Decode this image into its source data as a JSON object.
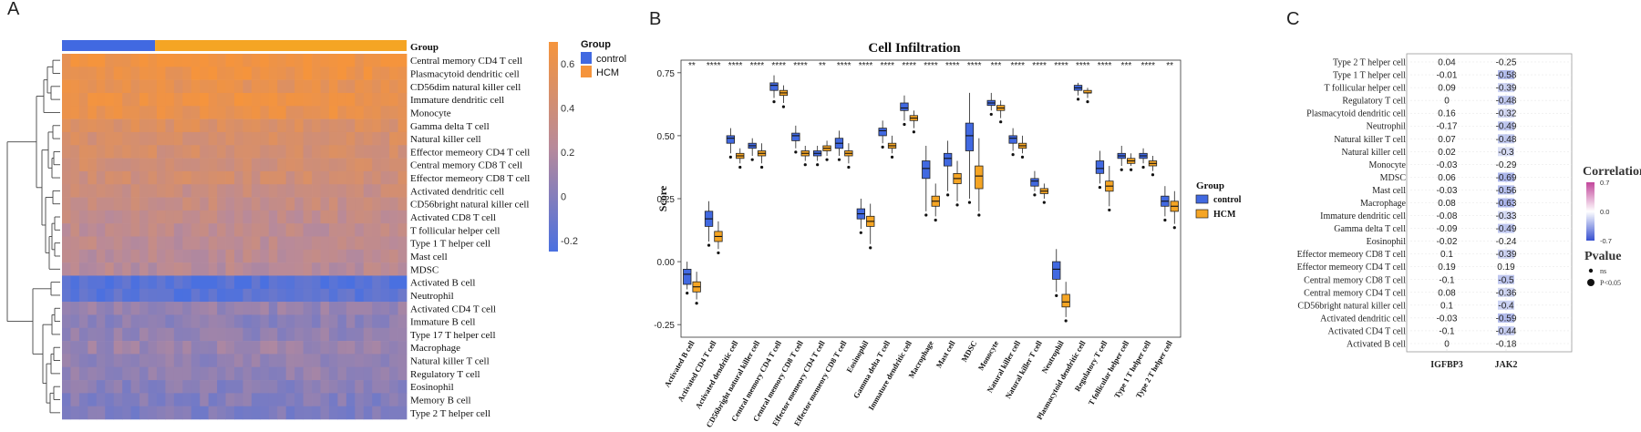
{
  "panels": {
    "a": "A",
    "b": "B",
    "c": "C"
  },
  "colors": {
    "control": "#4169e1",
    "hcm": "#f5a524",
    "heat_low": "#4a70e0",
    "heat_high": "#f5943c",
    "corr_pos": "#c2469b",
    "corr_neg": "#3750d0"
  },
  "chart_data": [
    {
      "type": "heatmap",
      "panel": "A",
      "annotation_title": "Group",
      "legend_title": "Group",
      "legend_items": [
        "control",
        "HCM"
      ],
      "group_split": {
        "control_fraction": 0.27
      },
      "colorbar": {
        "ticks": [
          0.6,
          0.4,
          0.2,
          0,
          -0.2
        ],
        "range": [
          -0.25,
          0.7
        ]
      },
      "rows": [
        "Central memory CD4 T cell",
        "Plasmacytoid dendritic cell",
        "CD56dim natural killer cell",
        "Immature dendritic cell",
        "Monocyte",
        "Gamma delta T cell",
        "Natural killer cell",
        "Effector memeory CD4 T cell",
        "Central memory CD8 T cell",
        "Effector memeory CD8 T cell",
        "Activated dendritic cell",
        "CD56bright natural killer cell",
        "Activated CD8 T cell",
        "T follicular helper cell",
        "Type 1 T helper cell",
        "Mast cell",
        "MDSC",
        "Activated B cell",
        "Neutrophil",
        "Activated CD4 T cell",
        "Immature  B cell",
        "Type 17 T helper cell",
        "Macrophage",
        "Natural killer T cell",
        "Regulatory T cell",
        "Eosinophil",
        "Memory B cell",
        "Type 2 T helper cell"
      ],
      "row_values": [
        0.66,
        0.64,
        0.58,
        0.62,
        0.6,
        0.5,
        0.46,
        0.44,
        0.42,
        0.41,
        0.36,
        0.34,
        0.3,
        0.28,
        0.27,
        0.26,
        0.24,
        -0.2,
        -0.18,
        0.08,
        0.04,
        0.06,
        0.1,
        0.05,
        0.07,
        0.02,
        0.0,
        -0.02
      ]
    },
    {
      "type": "box",
      "panel": "B",
      "title": "Cell Infiltration",
      "ylabel": "Score",
      "ylim": [
        -0.3,
        0.8
      ],
      "yticks": [
        0.75,
        0.5,
        0.25,
        0.0,
        -0.25
      ],
      "ytick_labels": [
        "0.75",
        "0.50",
        "0.25",
        "0.00",
        "-0.25"
      ],
      "legend_title": "Group",
      "legend_items": [
        "control",
        "HCM"
      ],
      "categories": [
        "Activated B cell",
        "Activated CD4 T cell",
        "Activated dendritic cell",
        "CD56bright natural killer cell",
        "Central memory CD4 T cell",
        "Central memory CD8 T cell",
        "Effector memeory CD4 T cell",
        "Effector memeory CD8 T cell",
        "Eosinophil",
        "Gamma delta T cell",
        "Immature dendritic cell",
        "Macrophage",
        "Mast cell",
        "MDSC",
        "Monocyte",
        "Natural killer cell",
        "Natural killer T cell",
        "Neutrophil",
        "Plasmacytoid dendritic cell",
        "Regulatory T cell",
        "T follicular helper cell",
        "Type 1 T helper cell",
        "Type 2 T helper cell"
      ],
      "significance": [
        "**",
        "****",
        "****",
        "****",
        "****",
        "****",
        "**",
        "****",
        "****",
        "****",
        "****",
        "****",
        "****",
        "****",
        "***",
        "****",
        "****",
        "****",
        "****",
        "****",
        "***",
        "****",
        "**"
      ],
      "series": [
        {
          "name": "control",
          "stats": [
            [
              -0.11,
              -0.09,
              -0.05,
              -0.03,
              0.0
            ],
            [
              0.08,
              0.14,
              0.17,
              0.2,
              0.24
            ],
            [
              0.43,
              0.47,
              0.49,
              0.5,
              0.53
            ],
            [
              0.42,
              0.45,
              0.46,
              0.47,
              0.49
            ],
            [
              0.65,
              0.68,
              0.7,
              0.71,
              0.74
            ],
            [
              0.45,
              0.48,
              0.5,
              0.51,
              0.54
            ],
            [
              0.4,
              0.42,
              0.43,
              0.44,
              0.46
            ],
            [
              0.42,
              0.45,
              0.47,
              0.49,
              0.52
            ],
            [
              0.13,
              0.17,
              0.19,
              0.21,
              0.25
            ],
            [
              0.47,
              0.5,
              0.52,
              0.53,
              0.56
            ],
            [
              0.56,
              0.6,
              0.61,
              0.63,
              0.66
            ],
            [
              0.2,
              0.33,
              0.37,
              0.4,
              0.46
            ],
            [
              0.28,
              0.38,
              0.41,
              0.43,
              0.48
            ],
            [
              0.25,
              0.44,
              0.5,
              0.55,
              0.67
            ],
            [
              0.6,
              0.62,
              0.63,
              0.64,
              0.67
            ],
            [
              0.44,
              0.47,
              0.49,
              0.5,
              0.53
            ],
            [
              0.28,
              0.3,
              0.32,
              0.33,
              0.36
            ],
            [
              -0.12,
              -0.07,
              -0.03,
              0.0,
              0.05
            ],
            [
              0.66,
              0.68,
              0.69,
              0.7,
              0.71
            ],
            [
              0.31,
              0.35,
              0.37,
              0.4,
              0.44
            ],
            [
              0.38,
              0.41,
              0.42,
              0.43,
              0.46
            ],
            [
              0.39,
              0.41,
              0.42,
              0.43,
              0.45
            ],
            [
              0.18,
              0.22,
              0.24,
              0.26,
              0.3
            ]
          ]
        },
        {
          "name": "HCM",
          "stats": [
            [
              -0.15,
              -0.12,
              -0.1,
              -0.08,
              -0.04
            ],
            [
              0.05,
              0.08,
              0.1,
              0.12,
              0.16
            ],
            [
              0.39,
              0.41,
              0.42,
              0.43,
              0.45
            ],
            [
              0.39,
              0.42,
              0.43,
              0.44,
              0.47
            ],
            [
              0.63,
              0.66,
              0.67,
              0.68,
              0.7
            ],
            [
              0.4,
              0.42,
              0.43,
              0.44,
              0.46
            ],
            [
              0.42,
              0.44,
              0.45,
              0.46,
              0.48
            ],
            [
              0.39,
              0.42,
              0.43,
              0.44,
              0.47
            ],
            [
              0.07,
              0.14,
              0.16,
              0.18,
              0.23
            ],
            [
              0.43,
              0.45,
              0.46,
              0.47,
              0.5
            ],
            [
              0.53,
              0.56,
              0.57,
              0.58,
              0.6
            ],
            [
              0.18,
              0.22,
              0.24,
              0.26,
              0.31
            ],
            [
              0.24,
              0.31,
              0.33,
              0.35,
              0.4
            ],
            [
              0.2,
              0.29,
              0.34,
              0.38,
              0.49
            ],
            [
              0.57,
              0.6,
              0.61,
              0.62,
              0.64
            ],
            [
              0.43,
              0.45,
              0.46,
              0.47,
              0.5
            ],
            [
              0.25,
              0.27,
              0.28,
              0.29,
              0.31
            ],
            [
              -0.22,
              -0.18,
              -0.16,
              -0.13,
              -0.08
            ],
            [
              0.65,
              0.67,
              0.67,
              0.68,
              0.69
            ],
            [
              0.22,
              0.28,
              0.3,
              0.32,
              0.38
            ],
            [
              0.38,
              0.39,
              0.4,
              0.41,
              0.43
            ],
            [
              0.36,
              0.38,
              0.39,
              0.4,
              0.42
            ],
            [
              0.15,
              0.2,
              0.22,
              0.24,
              0.28
            ]
          ]
        }
      ]
    },
    {
      "type": "table",
      "panel": "C",
      "columns": [
        "IGFBP3",
        "JAK2"
      ],
      "rows": [
        "Type 2 T helper cell",
        "Type 1 T helper cell",
        "T follicular helper cell",
        "Regulatory T cell",
        "Plasmacytoid dendritic cell",
        "Neutrophil",
        "Natural killer T cell",
        "Natural killer cell",
        "Monocyte",
        "MDSC",
        "Mast cell",
        "Macrophage",
        "Immature dendritic cell",
        "Gamma delta T cell",
        "Eosinophil",
        "Effector memeory CD8 T cell",
        "Effector memeory CD4 T cell",
        "Central memory CD8 T cell",
        "Central memory CD4 T cell",
        "CD56bright natural killer cell",
        "Activated dendritic cell",
        "Activated CD4 T cell",
        "Activated B cell"
      ],
      "values": [
        [
          "0.04",
          "-0.25"
        ],
        [
          "-0.01",
          "-0.58"
        ],
        [
          "0.09",
          "-0.39"
        ],
        [
          "0",
          "-0.48"
        ],
        [
          "0.16",
          "-0.32"
        ],
        [
          "-0.17",
          "-0.49"
        ],
        [
          "0.07",
          "-0.48"
        ],
        [
          "0.02",
          "-0.3"
        ],
        [
          "-0.03",
          "-0.29"
        ],
        [
          "0.06",
          "-0.69"
        ],
        [
          "-0.03",
          "-0.56"
        ],
        [
          "0.08",
          "-0.63"
        ],
        [
          "-0.08",
          "-0.33"
        ],
        [
          "-0.09",
          "-0.49"
        ],
        [
          "-0.02",
          "-0.24"
        ],
        [
          "0.1",
          "-0.39"
        ],
        [
          "0.19",
          "0.19"
        ],
        [
          "-0.1",
          "-0.5"
        ],
        [
          "0.08",
          "-0.36"
        ],
        [
          "0.1",
          "-0.4"
        ],
        [
          "-0.03",
          "-0.59"
        ],
        [
          "-0.1",
          "-0.44"
        ],
        [
          "0",
          "-0.18"
        ]
      ],
      "correlation_legend": {
        "title": "Correlation",
        "ticks": [
          "0.7",
          "0.0",
          "-0.7"
        ]
      },
      "pvalue_legend": {
        "title": "Pvalue",
        "items": [
          "ns",
          "P<0.05"
        ]
      }
    }
  ]
}
